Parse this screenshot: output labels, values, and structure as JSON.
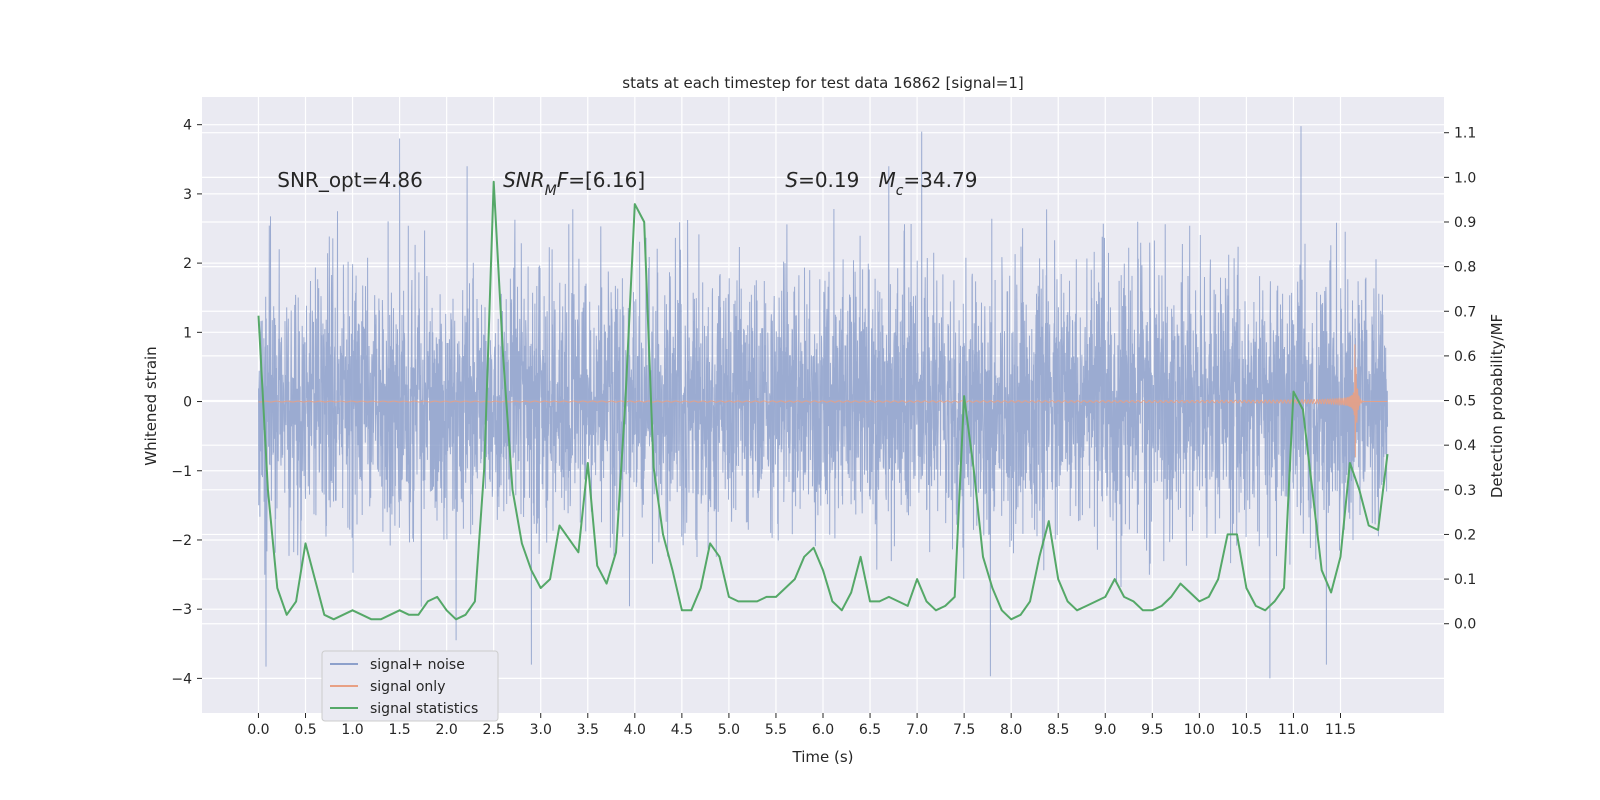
{
  "chart_data": {
    "type": "line",
    "title": "stats at each timestep for test data 16862 [signal=1]",
    "xlabel": "Time (s)",
    "ylabel_left": "Whitened strain",
    "ylabel_right": "Detection probability/MF",
    "xlim": [
      -0.6,
      12.6
    ],
    "ylim_left": [
      -4.5,
      4.4
    ],
    "ylim_right": [
      -0.2,
      1.18
    ],
    "x_ticks": [
      0.0,
      0.5,
      1.0,
      1.5,
      2.0,
      2.5,
      3.0,
      3.5,
      4.0,
      4.5,
      5.0,
      5.5,
      6.0,
      6.5,
      7.0,
      7.5,
      8.0,
      8.5,
      9.0,
      9.5,
      10.0,
      10.5,
      11.0,
      11.5
    ],
    "x_tick_labels": [
      "0.0",
      "0.5",
      "1.0",
      "1.5",
      "2.0",
      "2.5",
      "3.0",
      "3.5",
      "4.0",
      "4.5",
      "5.0",
      "5.5",
      "6.0",
      "6.5",
      "7.0",
      "7.5",
      "8.0",
      "8.5",
      "9.0",
      "9.5",
      "10.0",
      "10.5",
      "11.0",
      "11.5"
    ],
    "y_left_ticks": [
      -4,
      -3,
      -2,
      -1,
      0,
      1,
      2,
      3,
      4
    ],
    "y_left_tick_labels": [
      "−4",
      "−3",
      "−2",
      "−1",
      "0",
      "1",
      "2",
      "3",
      "4"
    ],
    "y_right_ticks": [
      0.0,
      0.1,
      0.2,
      0.3,
      0.4,
      0.5,
      0.6,
      0.7,
      0.8,
      0.9,
      1.0,
      1.1
    ],
    "y_right_tick_labels": [
      "0.0",
      "0.1",
      "0.2",
      "0.3",
      "0.4",
      "0.5",
      "0.6",
      "0.7",
      "0.8",
      "0.9",
      "1.0",
      "1.1"
    ],
    "grid": true,
    "legend_position": "lower-left",
    "annotations": [
      {
        "text": "SNR_opt=4.86",
        "x": 0.2,
        "y": 3.1
      },
      {
        "text": "SNR_MF=[6.16]",
        "x": 2.6,
        "y": 3.1
      },
      {
        "text": "S=0.19   M_c=34.79",
        "x": 5.6,
        "y": 3.1
      }
    ],
    "series": [
      {
        "name": "signal+ noise",
        "axis": "left",
        "kind": "dense noise",
        "x_range": [
          0.0,
          12.0
        ],
        "typical_range": [
          -2.2,
          2.2
        ],
        "extremes": [
          [
            0.08,
            -3.83
          ],
          [
            1.5,
            3.8
          ],
          [
            2.1,
            -3.45
          ],
          [
            2.9,
            -3.8
          ],
          [
            7.05,
            3.9
          ],
          [
            7.78,
            -3.97
          ],
          [
            10.75,
            -4.0
          ],
          [
            11.08,
            3.98
          ],
          [
            11.35,
            -3.8
          ]
        ],
        "color": "#8da0cb"
      },
      {
        "name": "signal only",
        "axis": "left",
        "kind": "chirp",
        "x_range": [
          0.0,
          12.0
        ],
        "merger_time": 11.65,
        "peak_amplitude": 1.3,
        "color": "#e8a084"
      },
      {
        "name": "signal statistics",
        "axis": "right",
        "x": [
          0.0,
          0.1,
          0.2,
          0.3,
          0.4,
          0.5,
          0.6,
          0.7,
          0.8,
          0.9,
          1.0,
          1.1,
          1.2,
          1.3,
          1.4,
          1.5,
          1.6,
          1.7,
          1.8,
          1.9,
          2.0,
          2.1,
          2.2,
          2.3,
          2.4,
          2.5,
          2.6,
          2.7,
          2.8,
          2.9,
          3.0,
          3.1,
          3.2,
          3.3,
          3.4,
          3.5,
          3.6,
          3.7,
          3.8,
          3.9,
          4.0,
          4.1,
          4.2,
          4.3,
          4.4,
          4.5,
          4.6,
          4.7,
          4.8,
          4.9,
          5.0,
          5.1,
          5.2,
          5.3,
          5.4,
          5.5,
          5.6,
          5.7,
          5.8,
          5.9,
          6.0,
          6.1,
          6.2,
          6.3,
          6.4,
          6.5,
          6.6,
          6.7,
          6.8,
          6.9,
          7.0,
          7.1,
          7.2,
          7.3,
          7.4,
          7.5,
          7.6,
          7.7,
          7.8,
          7.9,
          8.0,
          8.1,
          8.2,
          8.3,
          8.4,
          8.5,
          8.6,
          8.7,
          8.8,
          8.9,
          9.0,
          9.1,
          9.2,
          9.3,
          9.4,
          9.5,
          9.6,
          9.7,
          9.8,
          9.9,
          10.0,
          10.1,
          10.2,
          10.3,
          10.4,
          10.5,
          10.6,
          10.7,
          10.8,
          10.9,
          11.0,
          11.1,
          11.2,
          11.3,
          11.4,
          11.5,
          11.6,
          11.7,
          11.8,
          11.9,
          12.0
        ],
        "values": [
          0.69,
          0.3,
          0.08,
          0.02,
          0.05,
          0.18,
          0.1,
          0.02,
          0.01,
          0.02,
          0.03,
          0.02,
          0.01,
          0.01,
          0.02,
          0.03,
          0.02,
          0.02,
          0.05,
          0.06,
          0.03,
          0.01,
          0.02,
          0.05,
          0.35,
          0.99,
          0.6,
          0.3,
          0.18,
          0.12,
          0.08,
          0.1,
          0.22,
          0.19,
          0.16,
          0.36,
          0.13,
          0.09,
          0.16,
          0.5,
          0.94,
          0.9,
          0.35,
          0.2,
          0.12,
          0.03,
          0.03,
          0.08,
          0.18,
          0.15,
          0.06,
          0.05,
          0.05,
          0.05,
          0.06,
          0.06,
          0.08,
          0.1,
          0.15,
          0.17,
          0.12,
          0.05,
          0.03,
          0.07,
          0.15,
          0.05,
          0.05,
          0.06,
          0.05,
          0.04,
          0.1,
          0.05,
          0.03,
          0.04,
          0.06,
          0.51,
          0.35,
          0.15,
          0.08,
          0.03,
          0.01,
          0.02,
          0.05,
          0.15,
          0.23,
          0.1,
          0.05,
          0.03,
          0.04,
          0.05,
          0.06,
          0.1,
          0.06,
          0.05,
          0.03,
          0.03,
          0.04,
          0.06,
          0.09,
          0.07,
          0.05,
          0.06,
          0.1,
          0.2,
          0.2,
          0.08,
          0.04,
          0.03,
          0.05,
          0.08,
          0.52,
          0.48,
          0.3,
          0.12,
          0.07,
          0.15,
          0.36,
          0.3,
          0.22,
          0.21,
          0.38
        ],
        "color": "#55a868"
      }
    ]
  }
}
